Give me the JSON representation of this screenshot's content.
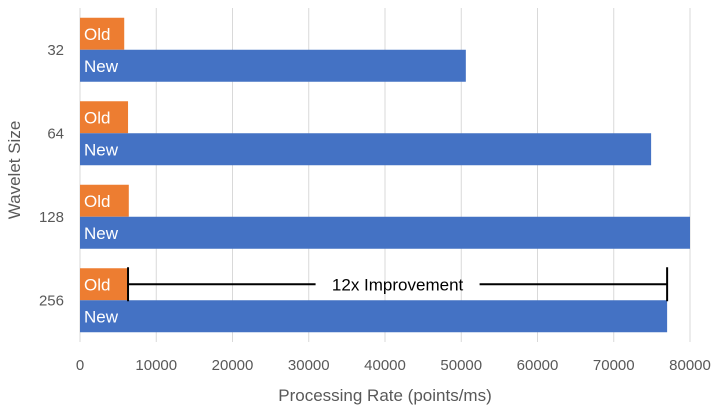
{
  "chart_data": {
    "type": "bar",
    "orientation": "horizontal",
    "categories": [
      "32",
      "64",
      "128",
      "256"
    ],
    "series": [
      {
        "name": "Old",
        "values": [
          5800,
          6300,
          6400,
          6300
        ],
        "color": "#ED7D31"
      },
      {
        "name": "New",
        "values": [
          50600,
          74900,
          80000,
          77000
        ],
        "color": "#4472C4"
      }
    ],
    "xlabel": "Processing Rate (points/ms)",
    "ylabel": "Wavelet Size",
    "xlim": [
      0,
      80000
    ],
    "xticks": [
      "0",
      "10000",
      "20000",
      "30000",
      "40000",
      "50000",
      "60000",
      "70000",
      "80000"
    ],
    "grid": "vertical",
    "legend": "none",
    "annotation": {
      "text": "12x Improvement",
      "category": "256",
      "from": 6300,
      "to": 77000
    }
  }
}
